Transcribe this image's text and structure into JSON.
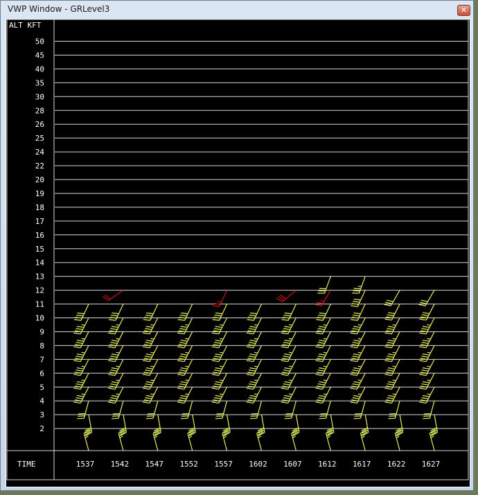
{
  "window": {
    "title": "VWP Window - GRLevel3",
    "close_icon": "close-icon"
  },
  "axis": {
    "alt_label": "ALT KFT",
    "time_label": "TIME",
    "alt_levels": [
      "50",
      "45",
      "40",
      "35",
      "30",
      "28",
      "26",
      "25",
      "24",
      "22",
      "20",
      "19",
      "18",
      "17",
      "16",
      "15",
      "14",
      "13",
      "12",
      "11",
      "10",
      "9",
      "8",
      "7",
      "6",
      "5",
      "4",
      "3",
      "2"
    ],
    "times": [
      "1537",
      "1542",
      "1547",
      "1552",
      "1557",
      "1602",
      "1607",
      "1612",
      "1617",
      "1622",
      "1627"
    ]
  },
  "colors": {
    "background": "#000000",
    "grid": "#d8d8d8",
    "text": "#ffffff",
    "y": "#e6f05a",
    "r": "#cc1414"
  },
  "barb_format": [
    "alt_kft",
    "direction_deg",
    "speed_kt",
    "color"
  ],
  "columns": [
    {
      "time": "1537",
      "barbs": [
        [
          11,
          205,
          40,
          "y"
        ],
        [
          10,
          207,
          45,
          "y"
        ],
        [
          9,
          207,
          45,
          "y"
        ],
        [
          8,
          207,
          45,
          "y"
        ],
        [
          7,
          207,
          45,
          "y"
        ],
        [
          6,
          207,
          45,
          "y"
        ],
        [
          5,
          207,
          45,
          "y"
        ],
        [
          4,
          195,
          30,
          "y"
        ],
        [
          3,
          170,
          30,
          "y"
        ],
        [
          1,
          345,
          25,
          "y"
        ]
      ]
    },
    {
      "time": "1542",
      "barbs": [
        [
          12,
          235,
          20,
          "r"
        ],
        [
          11,
          205,
          40,
          "y"
        ],
        [
          10,
          207,
          45,
          "y"
        ],
        [
          9,
          207,
          45,
          "y"
        ],
        [
          8,
          207,
          45,
          "y"
        ],
        [
          7,
          207,
          45,
          "y"
        ],
        [
          6,
          207,
          45,
          "y"
        ],
        [
          5,
          207,
          45,
          "y"
        ],
        [
          4,
          195,
          30,
          "y"
        ],
        [
          3,
          170,
          30,
          "y"
        ],
        [
          1,
          345,
          25,
          "y"
        ]
      ]
    },
    {
      "time": "1547",
      "barbs": [
        [
          11,
          205,
          40,
          "y"
        ],
        [
          10,
          207,
          45,
          "y"
        ],
        [
          9,
          207,
          45,
          "y"
        ],
        [
          8,
          207,
          45,
          "y"
        ],
        [
          7,
          207,
          45,
          "y"
        ],
        [
          6,
          207,
          45,
          "y"
        ],
        [
          5,
          207,
          45,
          "y"
        ],
        [
          4,
          195,
          30,
          "y"
        ],
        [
          3,
          170,
          30,
          "y"
        ],
        [
          1,
          345,
          25,
          "y"
        ]
      ]
    },
    {
      "time": "1552",
      "barbs": [
        [
          11,
          205,
          40,
          "y"
        ],
        [
          10,
          207,
          45,
          "y"
        ],
        [
          9,
          207,
          45,
          "y"
        ],
        [
          8,
          207,
          45,
          "y"
        ],
        [
          7,
          207,
          45,
          "y"
        ],
        [
          6,
          207,
          45,
          "y"
        ],
        [
          5,
          207,
          45,
          "y"
        ],
        [
          4,
          195,
          30,
          "y"
        ],
        [
          3,
          170,
          30,
          "y"
        ],
        [
          1,
          345,
          25,
          "y"
        ]
      ]
    },
    {
      "time": "1557",
      "barbs": [
        [
          12,
          205,
          25,
          "r"
        ],
        [
          11,
          205,
          40,
          "y"
        ],
        [
          10,
          207,
          45,
          "y"
        ],
        [
          9,
          207,
          45,
          "y"
        ],
        [
          8,
          207,
          45,
          "y"
        ],
        [
          7,
          207,
          45,
          "y"
        ],
        [
          6,
          207,
          45,
          "y"
        ],
        [
          5,
          207,
          45,
          "y"
        ],
        [
          4,
          195,
          30,
          "y"
        ],
        [
          3,
          170,
          30,
          "y"
        ],
        [
          1,
          345,
          25,
          "y"
        ]
      ]
    },
    {
      "time": "1602",
      "barbs": [
        [
          11,
          205,
          40,
          "y"
        ],
        [
          10,
          207,
          45,
          "y"
        ],
        [
          9,
          207,
          45,
          "y"
        ],
        [
          8,
          207,
          45,
          "y"
        ],
        [
          7,
          207,
          45,
          "y"
        ],
        [
          6,
          207,
          45,
          "y"
        ],
        [
          5,
          207,
          45,
          "y"
        ],
        [
          4,
          195,
          30,
          "y"
        ],
        [
          3,
          170,
          30,
          "y"
        ],
        [
          1,
          345,
          25,
          "y"
        ]
      ]
    },
    {
      "time": "1607",
      "barbs": [
        [
          12,
          230,
          30,
          "r"
        ],
        [
          11,
          205,
          40,
          "y"
        ],
        [
          10,
          207,
          45,
          "y"
        ],
        [
          9,
          207,
          45,
          "y"
        ],
        [
          8,
          207,
          45,
          "y"
        ],
        [
          7,
          207,
          45,
          "y"
        ],
        [
          6,
          207,
          45,
          "y"
        ],
        [
          5,
          207,
          45,
          "y"
        ],
        [
          4,
          195,
          30,
          "y"
        ],
        [
          3,
          170,
          30,
          "y"
        ],
        [
          1,
          345,
          25,
          "y"
        ]
      ]
    },
    {
      "time": "1612",
      "barbs": [
        [
          13,
          200,
          30,
          "y"
        ],
        [
          12,
          210,
          25,
          "r"
        ],
        [
          11,
          205,
          40,
          "y"
        ],
        [
          10,
          207,
          45,
          "y"
        ],
        [
          9,
          207,
          45,
          "y"
        ],
        [
          8,
          207,
          45,
          "y"
        ],
        [
          7,
          207,
          45,
          "y"
        ],
        [
          6,
          207,
          45,
          "y"
        ],
        [
          5,
          207,
          45,
          "y"
        ],
        [
          4,
          195,
          30,
          "y"
        ],
        [
          3,
          170,
          30,
          "y"
        ],
        [
          1,
          345,
          25,
          "y"
        ]
      ]
    },
    {
      "time": "1617",
      "barbs": [
        [
          13,
          200,
          35,
          "y"
        ],
        [
          12,
          205,
          40,
          "y"
        ],
        [
          11,
          205,
          40,
          "y"
        ],
        [
          10,
          207,
          45,
          "y"
        ],
        [
          9,
          207,
          45,
          "y"
        ],
        [
          8,
          207,
          45,
          "y"
        ],
        [
          7,
          207,
          45,
          "y"
        ],
        [
          6,
          207,
          45,
          "y"
        ],
        [
          5,
          207,
          45,
          "y"
        ],
        [
          4,
          195,
          30,
          "y"
        ],
        [
          3,
          170,
          30,
          "y"
        ],
        [
          1,
          345,
          25,
          "y"
        ]
      ]
    },
    {
      "time": "1622",
      "barbs": [
        [
          12,
          210,
          30,
          "y"
        ],
        [
          11,
          207,
          40,
          "y"
        ],
        [
          10,
          207,
          45,
          "y"
        ],
        [
          9,
          207,
          45,
          "y"
        ],
        [
          8,
          207,
          45,
          "y"
        ],
        [
          7,
          207,
          45,
          "y"
        ],
        [
          6,
          207,
          45,
          "y"
        ],
        [
          5,
          207,
          45,
          "y"
        ],
        [
          4,
          195,
          30,
          "y"
        ],
        [
          3,
          170,
          30,
          "y"
        ],
        [
          1,
          345,
          25,
          "y"
        ]
      ]
    },
    {
      "time": "1627",
      "barbs": [
        [
          12,
          210,
          30,
          "y"
        ],
        [
          11,
          207,
          40,
          "y"
        ],
        [
          10,
          207,
          45,
          "y"
        ],
        [
          9,
          207,
          45,
          "y"
        ],
        [
          8,
          207,
          45,
          "y"
        ],
        [
          7,
          207,
          45,
          "y"
        ],
        [
          6,
          207,
          45,
          "y"
        ],
        [
          5,
          207,
          45,
          "y"
        ],
        [
          4,
          195,
          30,
          "y"
        ],
        [
          3,
          170,
          30,
          "y"
        ],
        [
          1,
          345,
          25,
          "y"
        ]
      ]
    }
  ]
}
